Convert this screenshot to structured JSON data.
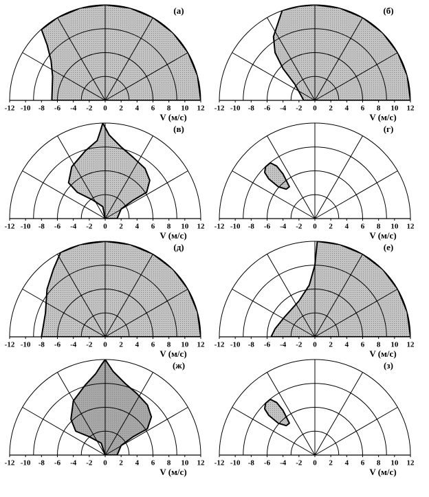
{
  "chart_data": [
    {
      "type": "polar",
      "label": "(а)",
      "xlabel": "V (м/с)",
      "xlim": [
        -12,
        12
      ],
      "xticks": [
        -12,
        -10,
        -8,
        -6,
        -4,
        -2,
        0,
        2,
        4,
        6,
        8,
        10,
        12
      ],
      "rgrid": [
        3,
        6,
        9,
        12
      ],
      "color": "#c4c4c4",
      "region": {
        "x": [
          -8,
          -7.3,
          -6.8,
          -6.6,
          -6.7,
          12,
          11.6,
          10.4,
          8.5,
          6,
          3.1,
          0,
          -3.1,
          -6
        ],
        "y": [
          8.9,
          7,
          5,
          3,
          0,
          0,
          3.1,
          6,
          8.5,
          10.4,
          11.6,
          12,
          11.6,
          10.4
        ]
      }
    },
    {
      "type": "polar",
      "label": "(б)",
      "xlabel": "V (м/с)",
      "xlim": [
        -12,
        12
      ],
      "xticks": [
        -12,
        -10,
        -8,
        -6,
        -4,
        -2,
        0,
        2,
        4,
        6,
        8,
        10,
        12
      ],
      "rgrid": [
        3,
        6,
        9,
        12
      ],
      "color": "#c4c4c4",
      "region": {
        "x": [
          -4.1,
          -5.2,
          -5,
          -4,
          -2.5,
          -1.4,
          12,
          11.6,
          10.4,
          8.5,
          6,
          3.1,
          0,
          -2
        ],
        "y": [
          11.3,
          8,
          6,
          4,
          2,
          0,
          0,
          3.1,
          6,
          8.5,
          10.4,
          11.6,
          12,
          11.8
        ]
      }
    },
    {
      "type": "polar",
      "label": "(в)",
      "xlabel": "V (м/с)",
      "xlim": [
        -12,
        12
      ],
      "xticks": [
        -12,
        -10,
        -8,
        -6,
        -4,
        -2,
        0,
        2,
        4,
        6,
        8,
        10,
        12
      ],
      "rgrid": [
        3,
        6,
        9,
        12
      ],
      "color": "#c4c4c4",
      "region": {
        "x": [
          -0.3,
          0.5,
          2,
          3.5,
          5,
          5.6,
          5.2,
          3.5,
          2,
          1.5,
          0,
          -0.3,
          -1.5,
          -3.5,
          -4.6,
          -4.2,
          -2.5,
          -1,
          -0.6
        ],
        "y": [
          12,
          10.5,
          9,
          7.7,
          6.3,
          4.8,
          3.3,
          2.3,
          1.2,
          0,
          0,
          1.5,
          2.3,
          3.3,
          4.5,
          6.5,
          8.5,
          9.8,
          11
        ]
      }
    },
    {
      "type": "polar",
      "label": "(г)",
      "xlabel": "V (м/с)",
      "xlim": [
        -12,
        12
      ],
      "xticks": [
        -12,
        -10,
        -8,
        -6,
        -4,
        -2,
        0,
        2,
        4,
        6,
        8,
        10,
        12
      ],
      "rgrid": [
        3,
        6,
        9,
        12
      ],
      "color": "#c4c4c4",
      "region": {
        "x": [
          -6.2,
          -5.6,
          -4.8,
          -4,
          -3.2,
          -3.6,
          -4.6,
          -5.8,
          -6.3
        ],
        "y": [
          6.5,
          7,
          6.6,
          5.6,
          4,
          3.7,
          4,
          5,
          5.8
        ]
      }
    },
    {
      "type": "polar",
      "label": "(д)",
      "xlabel": "V (м/с)",
      "xlim": [
        -12,
        12
      ],
      "xticks": [
        -12,
        -10,
        -8,
        -6,
        -4,
        -2,
        0,
        2,
        4,
        6,
        8,
        10,
        12
      ],
      "rgrid": [
        3,
        6,
        9,
        12
      ],
      "color": "#c4c4c4",
      "region": {
        "x": [
          -5.6,
          -6.5,
          -7.3,
          -7.5,
          -8,
          12,
          11.6,
          10.4,
          8.5,
          6,
          3.1,
          0,
          -3.1
        ],
        "y": [
          10.6,
          8.5,
          6,
          3,
          0,
          0,
          3.1,
          6,
          8.5,
          10.4,
          11.6,
          12,
          11.6
        ]
      }
    },
    {
      "type": "polar",
      "label": "(е)",
      "xlabel": "V (м/с)",
      "xlim": [
        -12,
        12
      ],
      "xticks": [
        -12,
        -10,
        -8,
        -6,
        -4,
        -2,
        0,
        2,
        4,
        6,
        8,
        10,
        12
      ],
      "rgrid": [
        3,
        6,
        9,
        12
      ],
      "color": "#c4c4c4",
      "region": {
        "x": [
          0.3,
          0,
          -0.7,
          -2,
          -3.8,
          -5,
          -5.5,
          12,
          11.6,
          10.4,
          8.5,
          6,
          3.1
        ],
        "y": [
          12,
          9,
          6.5,
          4.5,
          2.5,
          1,
          0,
          0,
          3.1,
          6,
          8.5,
          10.4,
          11.6
        ]
      }
    },
    {
      "type": "polar",
      "label": "(ж)",
      "xlabel": "V (м/с)",
      "xlim": [
        -12,
        12
      ],
      "xticks": [
        -12,
        -10,
        -8,
        -6,
        -4,
        -2,
        0,
        2,
        4,
        6,
        8,
        10,
        12
      ],
      "rgrid": [
        3,
        6,
        9,
        12
      ],
      "color": "#a8a8a8",
      "region": {
        "x": [
          0,
          1,
          2.5,
          4,
          5.3,
          5.8,
          5.3,
          3.5,
          2,
          1.5,
          0,
          -0.5,
          -2,
          -3.7,
          -4.3,
          -4,
          -2.5,
          -1.2,
          -0.5
        ],
        "y": [
          12,
          10.5,
          9,
          7.7,
          6.3,
          4.8,
          3.3,
          2.3,
          1.2,
          0,
          0,
          1.5,
          2.3,
          3,
          4.5,
          6.8,
          8.8,
          10.2,
          11.3
        ]
      }
    },
    {
      "type": "polar",
      "label": "(з)",
      "xlabel": "V (м/с)",
      "xlim": [
        -12,
        12
      ],
      "xticks": [
        -12,
        -10,
        -8,
        -6,
        -4,
        -2,
        0,
        2,
        4,
        6,
        8,
        10,
        12
      ],
      "rgrid": [
        3,
        6,
        9,
        12
      ],
      "color": "#c4c4c4",
      "region": {
        "x": [
          -6.2,
          -5.6,
          -4.8,
          -4,
          -3.2,
          -3.6,
          -4.6,
          -5.8,
          -6.3
        ],
        "y": [
          6.5,
          7,
          6.6,
          5.6,
          4,
          3.7,
          4,
          5,
          5.8
        ]
      }
    }
  ]
}
